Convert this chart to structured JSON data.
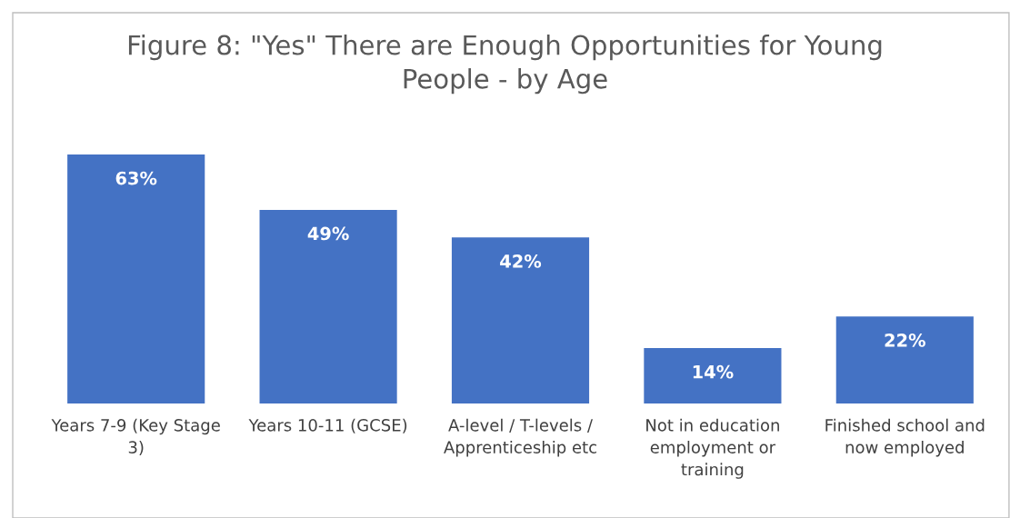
{
  "chart_data": {
    "type": "bar",
    "title": "Figure 8: \"Yes\" There are Enough Opportunities for Young People - by Age",
    "categories": [
      "Years 7-9 (Key Stage 3)",
      "Years 10-11 (GCSE)",
      "A-level / T-levels / Apprenticeship etc",
      "Not in education employment or training",
      "Finished school and now employed"
    ],
    "values": [
      63,
      49,
      42,
      14,
      22
    ],
    "value_labels": [
      "63%",
      "49%",
      "42%",
      "14%",
      "22%"
    ],
    "color": "#4472c4"
  }
}
